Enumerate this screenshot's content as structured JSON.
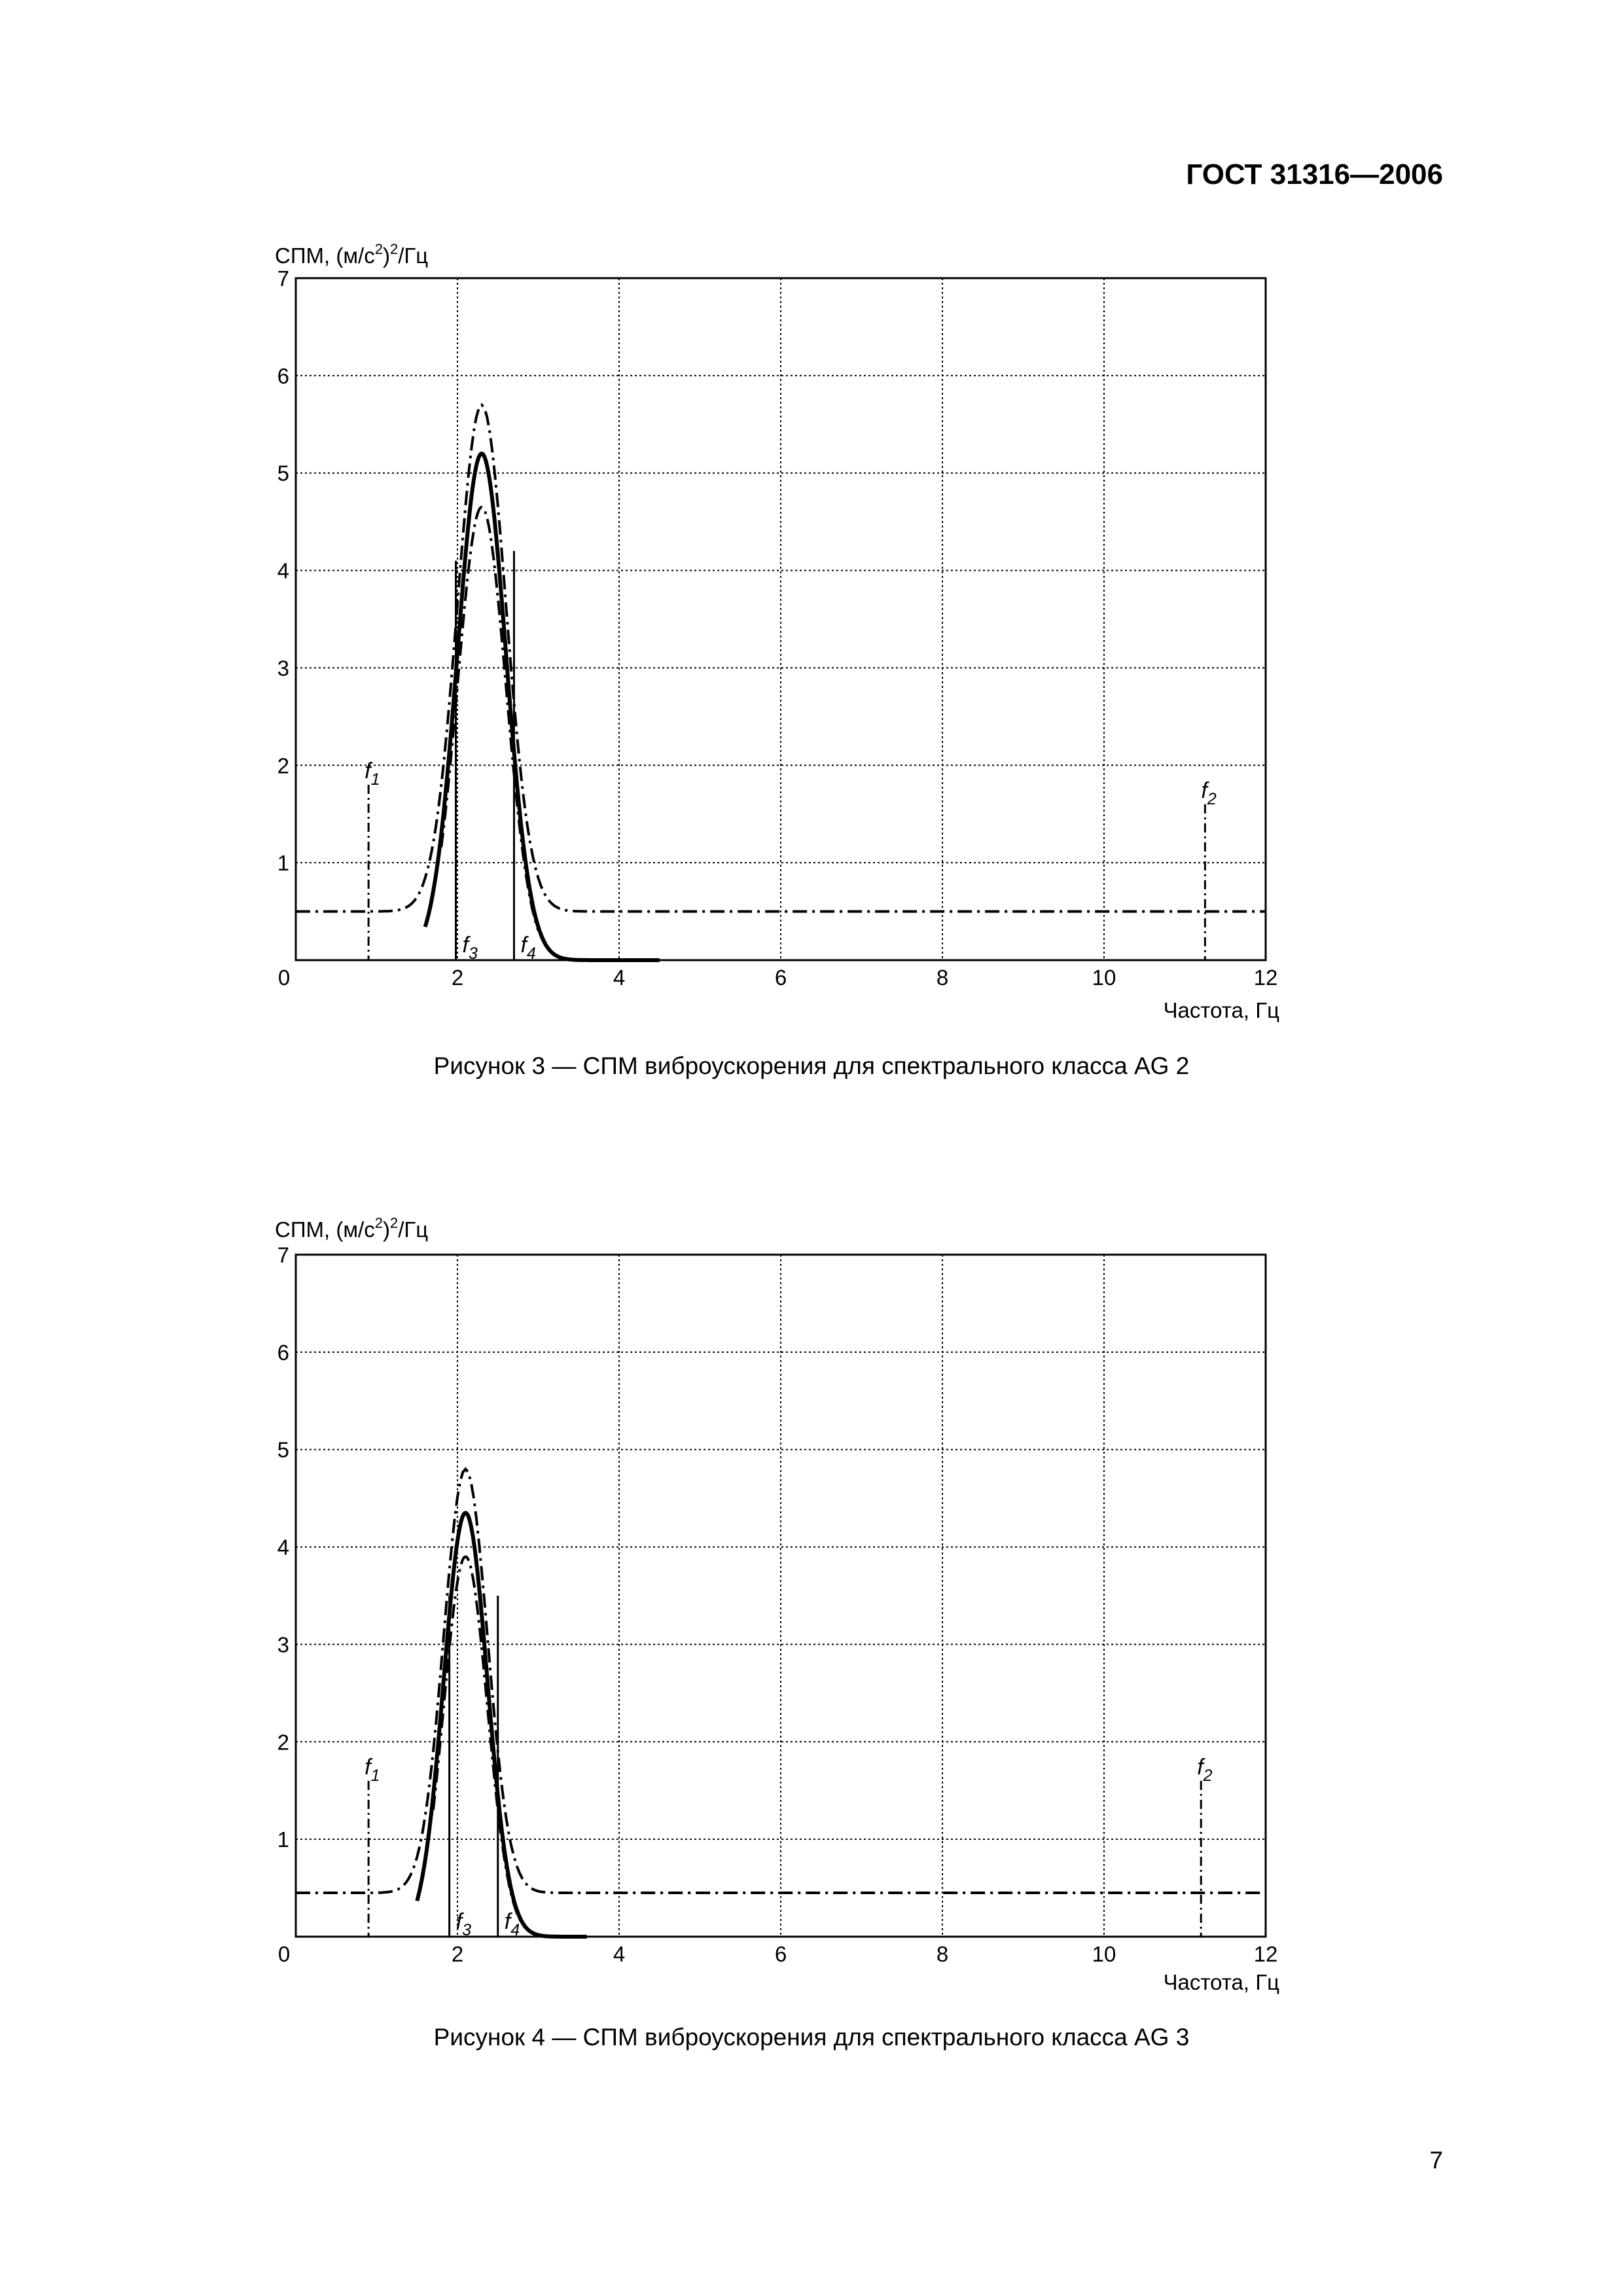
{
  "header": {
    "standard_code": "ГОСТ 31316—2006"
  },
  "page_number": "7",
  "figures": [
    {
      "caption": "Рисунок 3 — СПМ виброускорения для спектрального класса AG 2",
      "ylabel": {
        "text": "СПМ, (м/с",
        "sup1": "2",
        "mid": ")",
        "sup2": "2",
        "tail": "/Гц"
      },
      "xlabel": "Частота, Гц",
      "markers": {
        "f1": "1",
        "f2": "2",
        "f3": "3",
        "f4": "4"
      }
    },
    {
      "caption": "Рисунок 4 — СПМ виброускорения для спектрального класса AG 3",
      "ylabel": {
        "text": "СПМ, (м/с",
        "sup1": "2",
        "mid": ")",
        "sup2": "2",
        "tail": "/Гц"
      },
      "xlabel": "Частота, Гц",
      "markers": {
        "f1": "1",
        "f2": "2",
        "f3": "3",
        "f4": "4"
      }
    }
  ],
  "chart_data": [
    {
      "type": "line",
      "title": "",
      "xlabel": "Частота, Гц",
      "ylabel": "СПМ, (м/с²)²/Гц",
      "xlim": [
        0,
        12
      ],
      "ylim": [
        0,
        7
      ],
      "xticks": [
        0,
        2,
        4,
        6,
        8,
        10,
        12
      ],
      "yticks": [
        0,
        1,
        2,
        3,
        4,
        5,
        6,
        7
      ],
      "grid": true,
      "peak": {
        "center": 2.3,
        "width": 0.3
      },
      "series": [
        {
          "style": "solid",
          "peak": 5.2,
          "base": 0,
          "range": [
            1.6,
            4.5
          ]
        },
        {
          "style": "dashdot-upper",
          "peak": 5.7,
          "base": 0.5,
          "range": [
            0.0,
            12.0
          ]
        },
        {
          "style": "dashdot-lower",
          "peak": 4.65,
          "base": 0,
          "range": [
            1.8,
            3.0
          ]
        }
      ],
      "markers": [
        {
          "name": "f1",
          "x": 0.9,
          "y": 1.8,
          "style": "dashdot"
        },
        {
          "name": "f2",
          "x": 11.25,
          "y": 1.6,
          "style": "dashdot"
        },
        {
          "name": "f3",
          "x": 1.98,
          "y": 4.1,
          "style": "solid"
        },
        {
          "name": "f4",
          "x": 2.7,
          "y": 4.2,
          "style": "solid"
        }
      ]
    },
    {
      "type": "line",
      "title": "",
      "xlabel": "Частота, Гц",
      "ylabel": "СПМ, (м/с²)²/Гц",
      "xlim": [
        0,
        12
      ],
      "ylim": [
        0,
        7
      ],
      "xticks": [
        0,
        2,
        4,
        6,
        8,
        10,
        12
      ],
      "yticks": [
        0,
        1,
        2,
        3,
        4,
        5,
        6,
        7
      ],
      "grid": true,
      "peak": {
        "center": 2.1,
        "width": 0.27
      },
      "series": [
        {
          "style": "solid",
          "peak": 4.35,
          "base": 0,
          "range": [
            1.5,
            3.6
          ]
        },
        {
          "style": "dashdot-upper",
          "peak": 4.8,
          "base": 0.45,
          "range": [
            0.0,
            12.0
          ]
        },
        {
          "style": "dashdot-lower",
          "peak": 3.9,
          "base": 0,
          "range": [
            1.7,
            2.9
          ]
        }
      ],
      "markers": [
        {
          "name": "f1",
          "x": 0.9,
          "y": 1.6,
          "style": "dashdot"
        },
        {
          "name": "f2",
          "x": 11.2,
          "y": 1.6,
          "style": "dashdot"
        },
        {
          "name": "f3",
          "x": 1.9,
          "y": 3.5,
          "style": "solid"
        },
        {
          "name": "f4",
          "x": 2.5,
          "y": 3.5,
          "style": "solid"
        }
      ]
    }
  ]
}
